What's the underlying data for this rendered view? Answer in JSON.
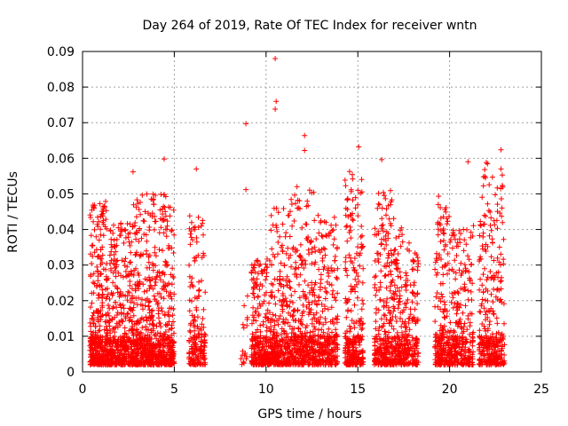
{
  "chart_data": {
    "type": "scatter",
    "title": "Day 264 of 2019, Rate Of TEC Index for receiver wntn",
    "xlabel": "GPS time / hours",
    "ylabel": "ROTI / TECUs",
    "xlim": [
      0,
      25
    ],
    "ylim": [
      0,
      0.09
    ],
    "x_ticks": [
      0,
      5,
      10,
      15,
      20,
      25
    ],
    "x_tick_labels": [
      "0",
      "5",
      "10",
      "15",
      "20",
      "25"
    ],
    "y_ticks": [
      0,
      0.01,
      0.02,
      0.03,
      0.04,
      0.05,
      0.06,
      0.07,
      0.08,
      0.09
    ],
    "y_tick_labels": [
      "0",
      "0.01",
      "0.02",
      "0.03",
      "0.04",
      "0.05",
      "0.06",
      "0.07",
      "0.08",
      "0.09"
    ],
    "grid": true,
    "marker": "+",
    "color": "#ff0000",
    "series": [
      {
        "name": "ROTI",
        "clusters": [
          {
            "x": [
              0.4,
              1.4
            ],
            "ymax": 0.046,
            "n": 260
          },
          {
            "x": [
              1.4,
              2.7
            ],
            "ymax": 0.04,
            "n": 280
          },
          {
            "x": [
              2.7,
              3.8
            ],
            "ymax": 0.048,
            "n": 260
          },
          {
            "x": [
              3.8,
              5.0
            ],
            "ymax": 0.048,
            "n": 260
          },
          {
            "x": [
              5.8,
              6.7
            ],
            "ymax": 0.042,
            "n": 140
          },
          {
            "x": [
              8.6,
              9.0
            ],
            "ymax": 0.02,
            "n": 12
          },
          {
            "x": [
              9.2,
              10.2
            ],
            "ymax": 0.03,
            "n": 180
          },
          {
            "x": [
              10.2,
              11.3
            ],
            "ymax": 0.045,
            "n": 220
          },
          {
            "x": [
              11.3,
              12.6
            ],
            "ymax": 0.05,
            "n": 240
          },
          {
            "x": [
              12.6,
              13.9
            ],
            "ymax": 0.042,
            "n": 220
          },
          {
            "x": [
              14.3,
              15.3
            ],
            "ymax": 0.055,
            "n": 200
          },
          {
            "x": [
              15.9,
              17.0
            ],
            "ymax": 0.05,
            "n": 220
          },
          {
            "x": [
              17.0,
              18.3
            ],
            "ymax": 0.04,
            "n": 200
          },
          {
            "x": [
              19.2,
              20.0
            ],
            "ymax": 0.048,
            "n": 160
          },
          {
            "x": [
              20.0,
              21.3
            ],
            "ymax": 0.04,
            "n": 200
          },
          {
            "x": [
              21.6,
              23.0
            ],
            "ymax": 0.058,
            "n": 240
          }
        ],
        "notable_points": [
          {
            "x": 2.75,
            "y": 0.0562
          },
          {
            "x": 4.45,
            "y": 0.0598
          },
          {
            "x": 6.2,
            "y": 0.057
          },
          {
            "x": 8.9,
            "y": 0.0697
          },
          {
            "x": 8.9,
            "y": 0.0512
          },
          {
            "x": 10.5,
            "y": 0.088
          },
          {
            "x": 10.55,
            "y": 0.076
          },
          {
            "x": 10.5,
            "y": 0.0738
          },
          {
            "x": 12.1,
            "y": 0.0664
          },
          {
            "x": 12.1,
            "y": 0.0622
          },
          {
            "x": 15.05,
            "y": 0.0632
          },
          {
            "x": 16.3,
            "y": 0.0596
          },
          {
            "x": 21.0,
            "y": 0.059
          },
          {
            "x": 22.0,
            "y": 0.0588
          },
          {
            "x": 22.8,
            "y": 0.0624
          },
          {
            "x": 22.8,
            "y": 0.057
          }
        ]
      }
    ]
  }
}
